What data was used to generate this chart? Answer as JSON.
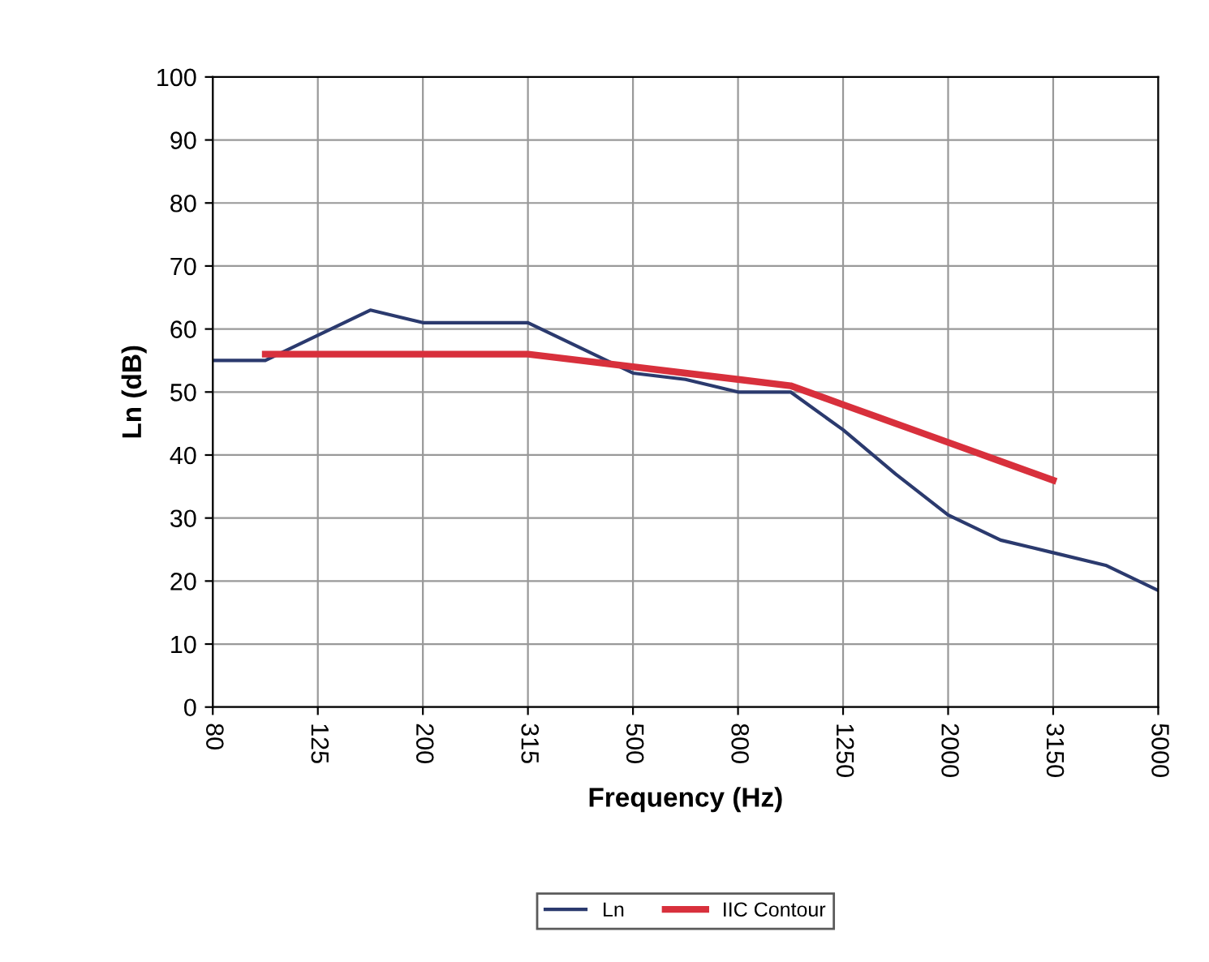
{
  "chart_data": {
    "type": "line",
    "xlabel": "Frequency (Hz)",
    "ylabel": "Ln (dB)",
    "categories": [
      "80",
      null,
      "125",
      null,
      "200",
      null,
      "315",
      null,
      "500",
      null,
      "800",
      null,
      "1250",
      null,
      "2000",
      null,
      "3150",
      null,
      "5000"
    ],
    "series": [
      {
        "name": "Ln",
        "color": "#2b3a6e",
        "values": [
          55,
          55,
          59,
          63,
          61,
          61,
          61,
          57,
          53,
          52,
          50,
          50,
          44,
          37,
          30.5,
          26.5,
          24.5,
          22.5,
          18.5
        ]
      },
      {
        "name": "IIC Contour",
        "color": "#d8303c",
        "values": [
          null,
          56,
          56,
          56,
          56,
          56,
          56,
          55,
          54,
          53,
          52,
          51,
          48,
          45,
          42,
          39,
          36,
          null,
          null
        ]
      }
    ],
    "ylim": [
      0,
      100
    ],
    "yticks": [
      0,
      10,
      20,
      30,
      40,
      50,
      60,
      70,
      80,
      90,
      100
    ],
    "grid": true,
    "legend": "bottom",
    "marker": "none",
    "line_style": "solid"
  }
}
